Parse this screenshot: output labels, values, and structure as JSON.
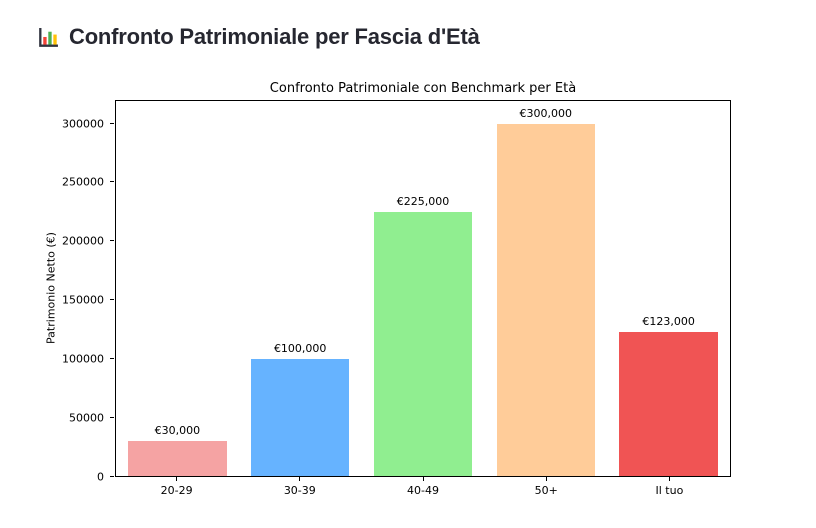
{
  "page": {
    "heading": "Confronto Patrimoniale per Fascia d'Età",
    "heading_icon": "bar-chart-icon"
  },
  "chart_data": {
    "type": "bar",
    "title": "Confronto Patrimoniale con Benchmark per Età",
    "xlabel": "",
    "ylabel": "Patrimonio Netto (€)",
    "categories": [
      "20-29",
      "30-39",
      "40-49",
      "50+",
      "Il tuo"
    ],
    "values": [
      30000,
      100000,
      225000,
      300000,
      123000
    ],
    "bar_labels": [
      "€30,000",
      "€100,000",
      "€225,000",
      "€300,000",
      "€123,000"
    ],
    "bar_colors": [
      "#f5a3a3",
      "#66b3ff",
      "#90ee90",
      "#ffcc99",
      "#f05454"
    ],
    "ylim": [
      0,
      320000
    ],
    "yticks": [
      0,
      50000,
      100000,
      150000,
      200000,
      250000,
      300000
    ],
    "grid": false,
    "legend": "none",
    "bar_width_fraction": 0.8
  }
}
